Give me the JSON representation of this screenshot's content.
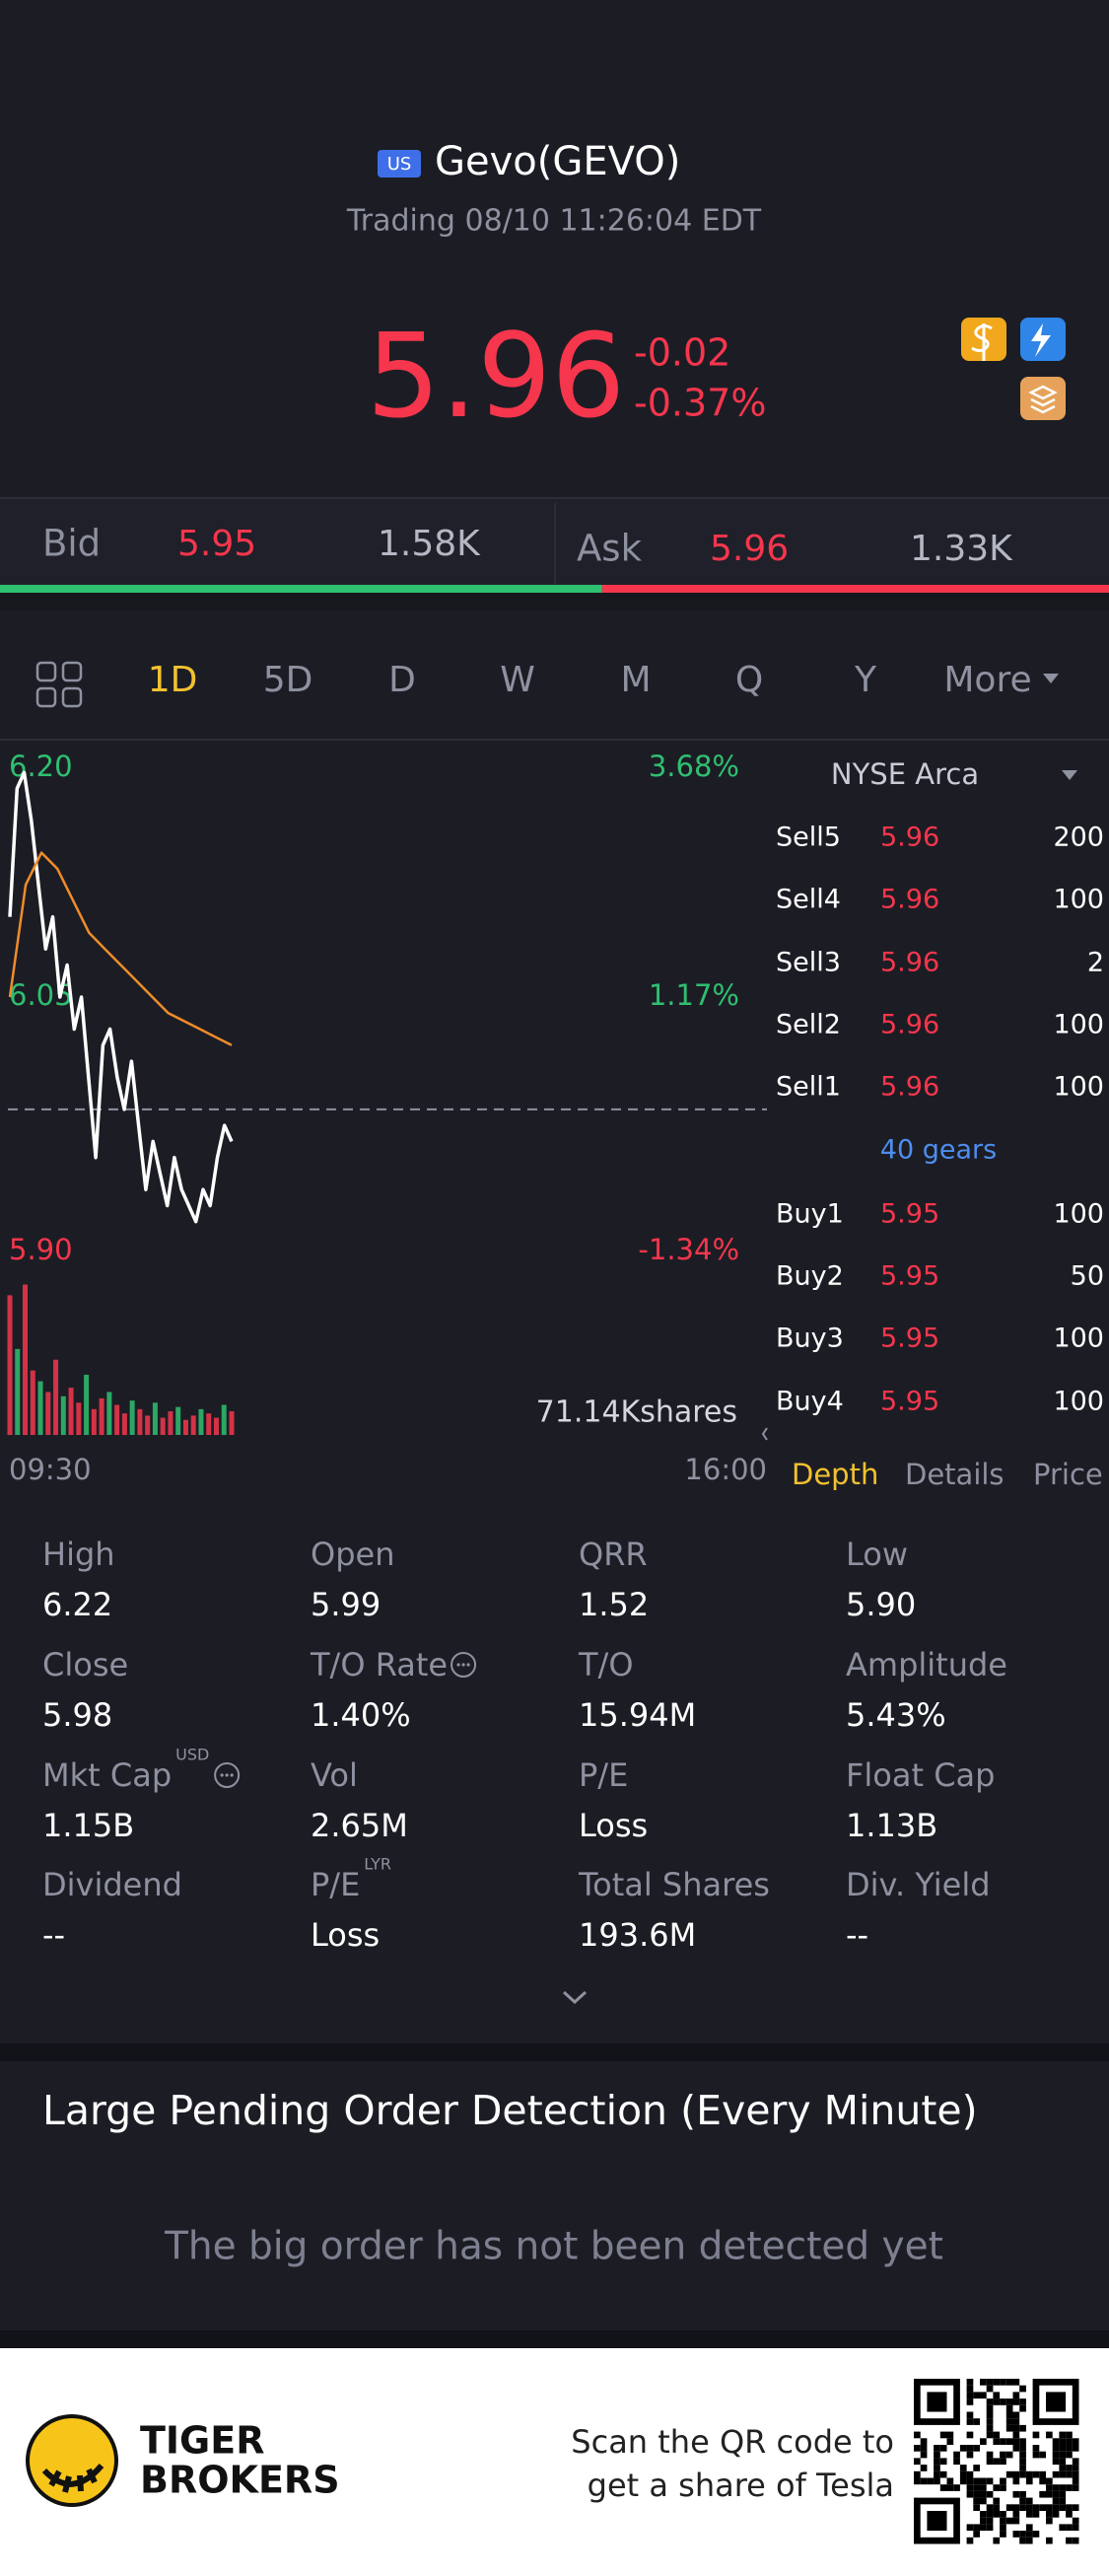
{
  "header": {
    "badge": "US",
    "title": "Gevo(GEVO)",
    "status": "Trading 08/10 11:26:04 EDT"
  },
  "quote": {
    "price": "5.96",
    "change": "-0.02",
    "change_pct": "-0.37%"
  },
  "bid_ask": {
    "bid_label": "Bid",
    "bid_price": "5.95",
    "bid_size": {
      "value": 1580,
      "label": "1.58K"
    },
    "ask_label": "Ask",
    "ask_price": "5.96",
    "ask_size": {
      "value": 1330,
      "label": "1.33K"
    }
  },
  "tabs": [
    {
      "label": "1D",
      "active": true
    },
    {
      "label": "5D"
    },
    {
      "label": "D"
    },
    {
      "label": "W"
    },
    {
      "label": "M"
    },
    {
      "label": "Q"
    },
    {
      "label": "Y"
    },
    {
      "label": "More"
    }
  ],
  "chart": {
    "type": "line",
    "ylim": [
      5.9,
      6.2
    ],
    "yticks": [
      {
        "value": 6.2,
        "label": "6.20"
      },
      {
        "value": 6.05,
        "label": "6.05"
      },
      {
        "value": 5.9,
        "label": "5.90"
      }
    ],
    "pct_labels": [
      "3.68%",
      "1.17%",
      "-1.34%"
    ],
    "prev_close": 5.98,
    "x_labels": [
      "09:30",
      "16:00"
    ],
    "series": [
      {
        "color": "#ffffff",
        "values": [
          6.1,
          6.18,
          6.19,
          6.16,
          6.12,
          6.08,
          6.1,
          6.05,
          6.07,
          6.03,
          6.05,
          6.0,
          5.95,
          6.02,
          6.03,
          6.0,
          5.98,
          6.01,
          5.97,
          5.93,
          5.96,
          5.94,
          5.92,
          5.95,
          5.93,
          5.92,
          5.91,
          5.93,
          5.92,
          5.95,
          5.97,
          5.96
        ]
      },
      {
        "color": "#f08c2a",
        "values": [
          6.05,
          6.12,
          6.14,
          6.13,
          6.11,
          6.09,
          6.08,
          6.07,
          6.06,
          6.05,
          6.04,
          6.035,
          6.03,
          6.025,
          6.02
        ]
      }
    ],
    "volume": {
      "label": "71.14Kshares",
      "max": 71140,
      "values": [
        65000,
        40000,
        70000,
        30000,
        25000,
        20000,
        35000,
        18000,
        22000,
        15000,
        28000,
        12000,
        17000,
        20000,
        14000,
        10000,
        16000,
        12000,
        9000,
        15000,
        8000,
        11000,
        13000,
        7000,
        9000,
        12000,
        10000,
        8000,
        14000,
        11000
      ]
    }
  },
  "order_book": {
    "exchange": "NYSE Arca",
    "asks": [
      {
        "label": "Sell5",
        "price": 5.96,
        "qty": 200
      },
      {
        "label": "Sell4",
        "price": 5.96,
        "qty": 100
      },
      {
        "label": "Sell3",
        "price": 5.96,
        "qty": 2
      },
      {
        "label": "Sell2",
        "price": 5.96,
        "qty": 100
      },
      {
        "label": "Sell1",
        "price": 5.96,
        "qty": 100
      }
    ],
    "gears": "40 gears",
    "bids": [
      {
        "label": "Buy1",
        "price": 5.95,
        "qty": 100
      },
      {
        "label": "Buy2",
        "price": 5.95,
        "qty": 50
      },
      {
        "label": "Buy3",
        "price": 5.95,
        "qty": 100
      },
      {
        "label": "Buy4",
        "price": 5.95,
        "qty": 100
      }
    ],
    "tabs": [
      {
        "label": "Depth",
        "active": true
      },
      {
        "label": "Details"
      },
      {
        "label": "Price"
      }
    ]
  },
  "stats": [
    {
      "label": "High",
      "value": "6.22"
    },
    {
      "label": "Open",
      "value": "5.99"
    },
    {
      "label": "QRR",
      "value": "1.52"
    },
    {
      "label": "Low",
      "value": "5.90"
    },
    {
      "label": "Close",
      "value": "5.98"
    },
    {
      "label": "T/O Rate",
      "value": "1.40%",
      "info": true
    },
    {
      "label": "T/O",
      "value": "15.94M"
    },
    {
      "label": "Amplitude",
      "value": "5.43%"
    },
    {
      "label": "Mkt Cap",
      "sup": "USD",
      "value": "1.15B",
      "info": true
    },
    {
      "label": "Vol",
      "value": "2.65M"
    },
    {
      "label": "P/E",
      "value": "Loss"
    },
    {
      "label": "Float Cap",
      "value": "1.13B"
    },
    {
      "label": "Dividend",
      "value": "--"
    },
    {
      "label": "P/E",
      "sup": "LYR",
      "value": "Loss"
    },
    {
      "label": "Total Shares",
      "value": "193.6M"
    },
    {
      "label": "Div. Yield",
      "value": "--"
    }
  ],
  "detection": {
    "title": "Large Pending Order Detection (Every Minute)",
    "message": "The big order has not been detected yet"
  },
  "footer": {
    "brand": [
      "TIGER",
      "BROKERS"
    ],
    "qr_text": [
      "Scan the QR code to",
      "get a share of Tesla"
    ]
  }
}
